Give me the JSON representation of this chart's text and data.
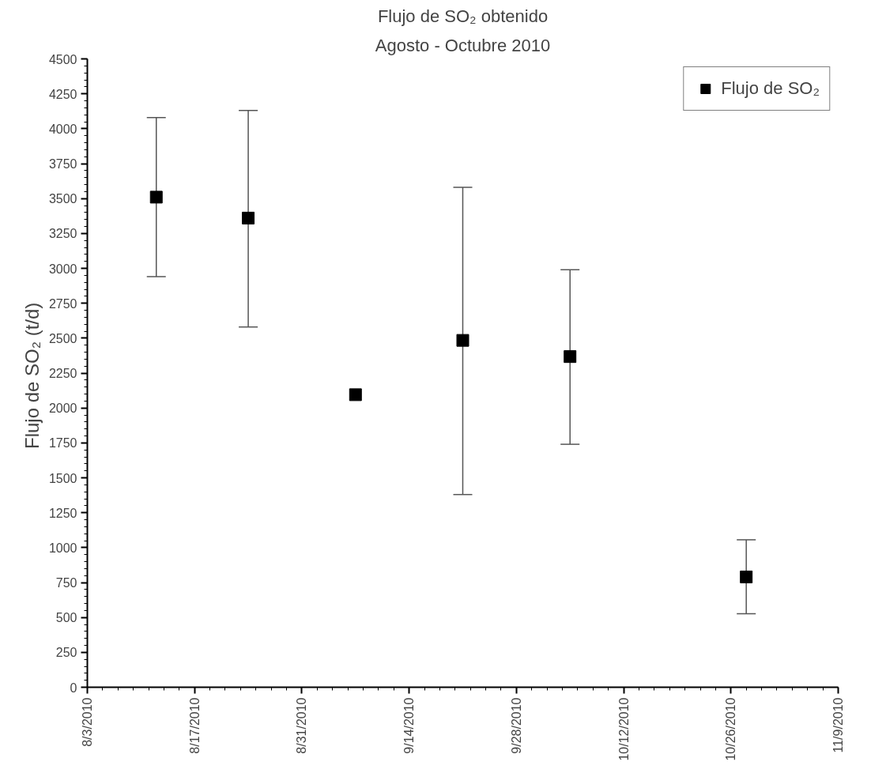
{
  "chart_data": {
    "type": "scatter",
    "title": "Flujo de SO₂ obtenido",
    "subtitle": "Agosto - Octubre 2010",
    "ylabel": "Flujo de SO₂  (t/d)",
    "x": [
      "2010-08-12",
      "2010-08-24",
      "2010-09-07",
      "2010-09-21",
      "2010-10-05",
      "2010-10-28"
    ],
    "series": [
      {
        "name": "Flujo de SO₂",
        "color": "#000000",
        "values": [
          3510,
          3360,
          2095,
          2484,
          2368,
          790
        ],
        "errors": [
          [
            2940,
            4080
          ],
          [
            2580,
            4130
          ],
          null,
          [
            1380,
            3580
          ],
          [
            1740,
            2990
          ],
          [
            526,
            1056
          ]
        ]
      }
    ],
    "xlim": [
      "2010-08-03",
      "2010-11-09"
    ],
    "xticks": [
      {
        "value": "2010-08-03",
        "label": "8/3/2010"
      },
      {
        "value": "2010-08-17",
        "label": "8/17/2010"
      },
      {
        "value": "2010-08-31",
        "label": "8/31/2010"
      },
      {
        "value": "2010-09-14",
        "label": "9/14/2010"
      },
      {
        "value": "2010-09-28",
        "label": "9/28/2010"
      },
      {
        "value": "2010-10-12",
        "label": "10/12/2010"
      },
      {
        "value": "2010-10-26",
        "label": "10/26/2010"
      },
      {
        "value": "2010-11-09",
        "label": "11/9/2010"
      }
    ],
    "ylim": [
      0,
      4500
    ],
    "yticks": [
      0,
      250,
      500,
      750,
      1000,
      1250,
      1500,
      1750,
      2000,
      2250,
      2500,
      2750,
      3000,
      3250,
      3500,
      3750,
      4000,
      4250,
      4500
    ],
    "grid": false,
    "legend": "top right",
    "marker": "square"
  }
}
